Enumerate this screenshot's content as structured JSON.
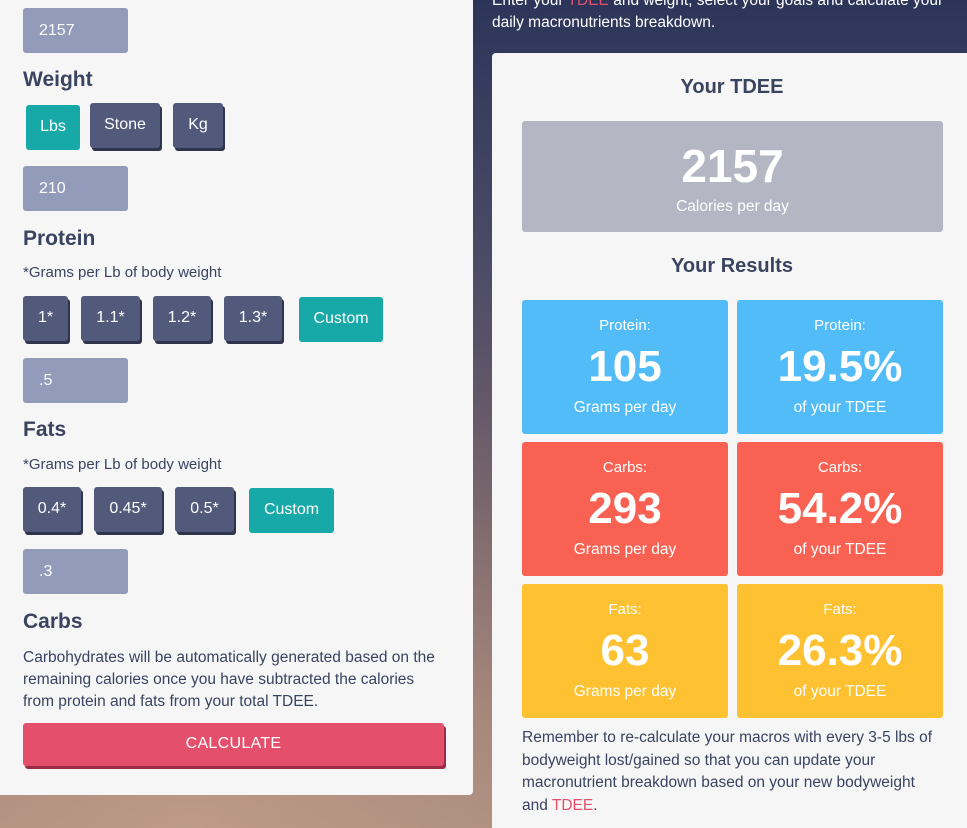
{
  "intro": {
    "line1_a": "Enter your ",
    "line1_tdee": "TDEE",
    "line1_b": " and weight, select your goals and calculate your",
    "line2": "daily macronutrients breakdown."
  },
  "tdee_input": {
    "value": "2157"
  },
  "weight": {
    "title": "Weight",
    "units": [
      "Lbs",
      "Stone",
      "Kg"
    ],
    "selected_unit": "Lbs",
    "value": "210"
  },
  "protein": {
    "title": "Protein",
    "note": "*Grams per Lb of body weight",
    "options": [
      "1*",
      "1.1*",
      "1.2*",
      "1.3*",
      "Custom"
    ],
    "selected": "Custom",
    "value": ".5"
  },
  "fats": {
    "title": "Fats",
    "note": "*Grams per Lb of body weight",
    "options": [
      "0.4*",
      "0.45*",
      "0.5*",
      "Custom"
    ],
    "selected": "Custom",
    "value": ".3"
  },
  "carbs": {
    "title": "Carbs",
    "description_lines": [
      "Carbohydrates will be automatically generated based on the",
      "remaining calories once you have subtracted the calories",
      "from protein and fats from your total TDEE."
    ]
  },
  "calculate_label": "CALCULATE",
  "results": {
    "tdee_heading": "Your TDEE",
    "tdee_value": "2157",
    "tdee_unit": "Calories per day",
    "results_heading": "Your Results",
    "cards": [
      {
        "title": "Protein:",
        "value": "105",
        "label": "Grams per day",
        "color": "#52bcf8"
      },
      {
        "title": "Protein:",
        "value": "19.5%",
        "label": "of your TDEE",
        "color": "#52bcf8"
      },
      {
        "title": "Carbs:",
        "value": "293",
        "label": "Grams per day",
        "color": "#f96253"
      },
      {
        "title": "Carbs:",
        "value": "54.2%",
        "label": "of your TDEE",
        "color": "#f96253"
      },
      {
        "title": "Fats:",
        "value": "63",
        "label": "Grams per day",
        "color": "#fec131"
      },
      {
        "title": "Fats:",
        "value": "26.3%",
        "label": "of your TDEE",
        "color": "#fec131"
      }
    ],
    "reminder_lines": [
      "Remember to re-calculate your macros with every 3-5 lbs of",
      "bodyweight lost/gained so that you can update your",
      "macronutrient breakdown based on your new bodyweight"
    ],
    "reminder_last_a": "and ",
    "reminder_last_tdee": "TDEE",
    "reminder_last_b": "."
  },
  "colors": {
    "accent_teal": "#17a9a8",
    "button_navy": "#525a7c",
    "calculate_pink": "#e4506c",
    "input_slate": "#929cba"
  }
}
